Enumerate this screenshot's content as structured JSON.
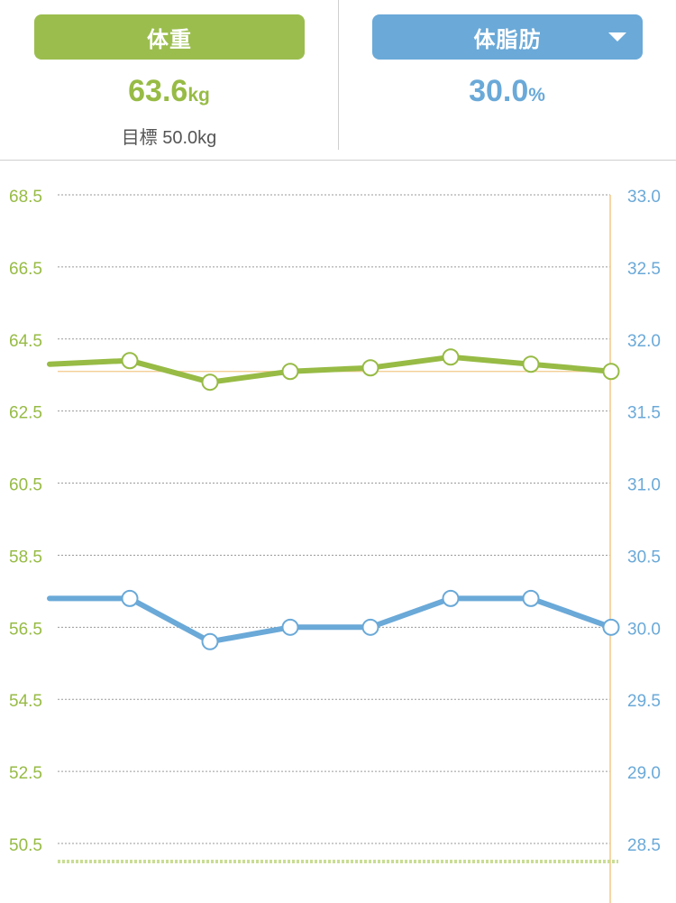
{
  "header": {
    "weight": {
      "label": "体重",
      "value": "63.6",
      "unit": "kg",
      "goal": "目標 50.0kg"
    },
    "body_fat": {
      "label": "体脂肪",
      "value": "30.0",
      "unit": "%",
      "dropdown_icon": "caret-down-icon"
    }
  },
  "colors": {
    "weight": "#97bb45",
    "body_fat": "#6aa9d8",
    "today_line": "#f3c98a",
    "grid": "#9a9a9a"
  },
  "chart_data": {
    "type": "line",
    "x": [
      1,
      2,
      3,
      4,
      5,
      6,
      7,
      8
    ],
    "left_axis": {
      "ticks": [
        "68.5",
        "66.5",
        "64.5",
        "62.5",
        "60.5",
        "58.5",
        "56.5",
        "54.5",
        "52.5",
        "50.5"
      ],
      "ylim": [
        50.5,
        68.5
      ]
    },
    "right_axis": {
      "ticks": [
        "33.0",
        "32.5",
        "32.0",
        "31.5",
        "31.0",
        "30.5",
        "30.0",
        "29.5",
        "29.0",
        "28.5"
      ],
      "ylim": [
        28.5,
        33.0
      ]
    },
    "grid": true,
    "series": [
      {
        "id": "weight",
        "axis": "left",
        "values": [
          63.8,
          63.9,
          63.3,
          63.6,
          63.7,
          64.0,
          63.8,
          63.6
        ]
      },
      {
        "id": "body_fat",
        "axis": "right",
        "values": [
          30.2,
          30.2,
          29.9,
          30.0,
          30.0,
          30.2,
          30.2,
          30.0
        ]
      }
    ],
    "goal_line": {
      "axis": "left",
      "value": 50.0
    },
    "current_weight_line": {
      "axis": "left",
      "value": 63.6
    }
  }
}
